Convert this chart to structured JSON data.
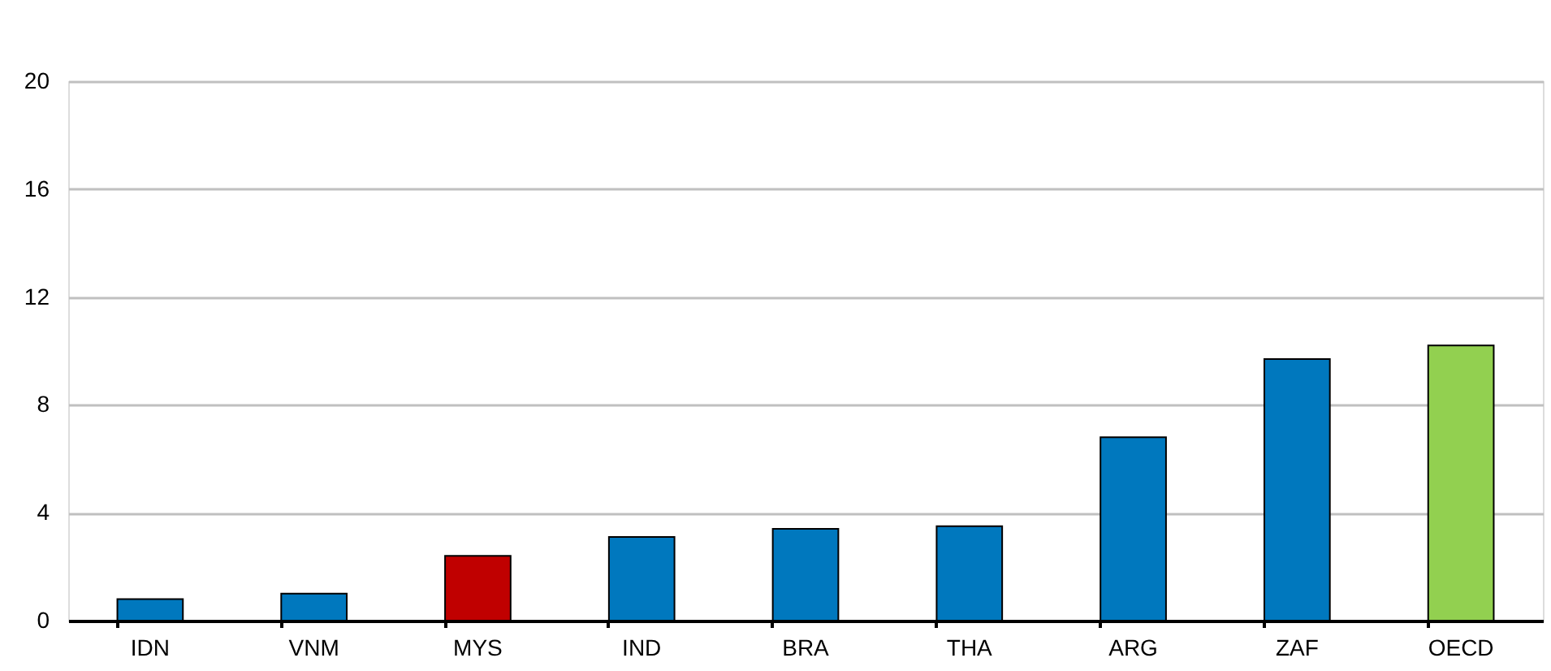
{
  "chart_data": {
    "type": "bar",
    "categories": [
      "IDN",
      "VNM",
      "MYS",
      "IND",
      "BRA",
      "THA",
      "ARG",
      "ZAF",
      "OECD"
    ],
    "values": [
      0.8,
      1.0,
      2.4,
      3.1,
      3.4,
      3.5,
      6.8,
      9.7,
      10.2
    ],
    "colors": [
      "#0078be",
      "#0078be",
      "#c00000",
      "#0078be",
      "#0078be",
      "#0078be",
      "#0078be",
      "#0078be",
      "#92d050"
    ],
    "ylim": [
      0,
      20
    ],
    "yticks": [
      0,
      4,
      8,
      12,
      16,
      20
    ],
    "grid": "y"
  }
}
